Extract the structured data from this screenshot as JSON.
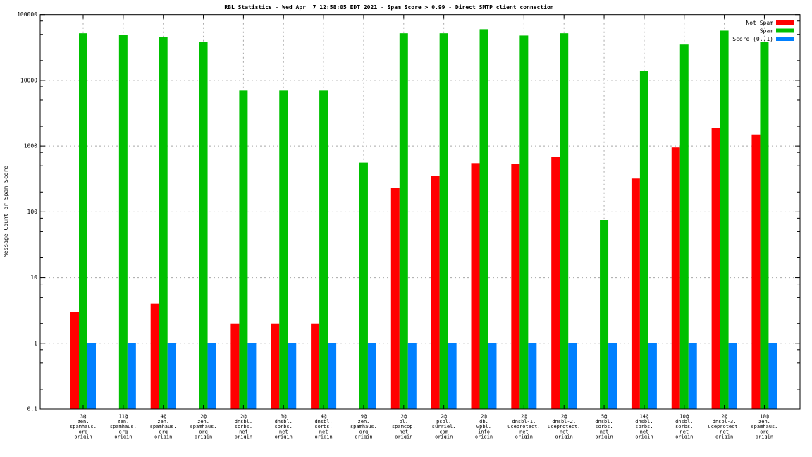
{
  "window": {
    "title": "RBL Statistics chart"
  },
  "colors": {
    "not_spam": "#ff0000",
    "spam": "#00c000",
    "score": "#0080ff",
    "grid": "#a8a8a8",
    "axis": "#000000",
    "background": "#ffffff"
  },
  "chart_data": {
    "type": "bar",
    "title": "RBL Statistics - Wed Apr  7 12:58:05 EDT 2021 - Spam Score > 0.99 - Direct SMTP client connection",
    "xlabel": "",
    "ylabel": "Message Count or Spam Score",
    "y_scale": "log",
    "ylim": [
      0.1,
      100000
    ],
    "y_ticks": [
      "100000",
      "10000",
      "1000",
      "100",
      "10",
      "1",
      "0.1"
    ],
    "grid": true,
    "legend_position": "top-right-inside",
    "categories": [
      [
        "3@",
        "zen.",
        "spamhaus.",
        "org",
        "origin"
      ],
      [
        "11@",
        "zen.",
        "spamhaus.",
        "org",
        "origin"
      ],
      [
        "4@",
        "zen.",
        "spamhaus.",
        "org",
        "origin"
      ],
      [
        "2@",
        "zen.",
        "spamhaus.",
        "org",
        "origin"
      ],
      [
        "2@",
        "dnsbl.",
        "sorbs.",
        "net",
        "origin"
      ],
      [
        "3@",
        "dnsbl.",
        "sorbs.",
        "net",
        "origin"
      ],
      [
        "4@",
        "dnsbl.",
        "sorbs.",
        "net",
        "origin"
      ],
      [
        "9@",
        "zen.",
        "spamhaus.",
        "org",
        "origin"
      ],
      [
        "2@",
        "bl.",
        "spamcop.",
        "net",
        "origin"
      ],
      [
        "2@",
        "psbl.",
        "surriel.",
        "com",
        "origin"
      ],
      [
        "2@",
        "db.",
        "wpbl.",
        "info",
        "origin"
      ],
      [
        "2@",
        "dnsbl-1.",
        "uceprotect.",
        "net",
        "origin"
      ],
      [
        "2@",
        "dnsbl-2.",
        "uceprotect.",
        "net",
        "origin"
      ],
      [
        "5@",
        "dnsbl.",
        "sorbs.",
        "net",
        "origin"
      ],
      [
        "14@",
        "dnsbl.",
        "sorbs.",
        "net",
        "origin"
      ],
      [
        "10@",
        "dnsbl.",
        "sorbs.",
        "net",
        "origin"
      ],
      [
        "2@",
        "dnsbl-3.",
        "uceprotect.",
        "net",
        "origin"
      ],
      [
        "10@",
        "zen.",
        "spamhaus.",
        "org",
        "origin"
      ]
    ],
    "series": [
      {
        "name": "Not Spam",
        "color": "#ff0000",
        "values": [
          3,
          null,
          4,
          null,
          2,
          2,
          2,
          null,
          230,
          350,
          550,
          530,
          680,
          null,
          320,
          950,
          1900,
          1500
        ]
      },
      {
        "name": "Spam",
        "color": "#00c000",
        "values": [
          52000,
          49000,
          46000,
          38000,
          7000,
          7000,
          7000,
          560,
          52000,
          52000,
          60000,
          48000,
          52000,
          75,
          14000,
          35000,
          57000,
          38000
        ]
      },
      {
        "name": "Score (0..1)",
        "color": "#0080ff",
        "values": [
          1,
          1,
          1,
          1,
          1,
          1,
          1,
          1,
          1,
          1,
          1,
          1,
          1,
          1,
          1,
          1,
          1,
          1
        ]
      }
    ]
  }
}
